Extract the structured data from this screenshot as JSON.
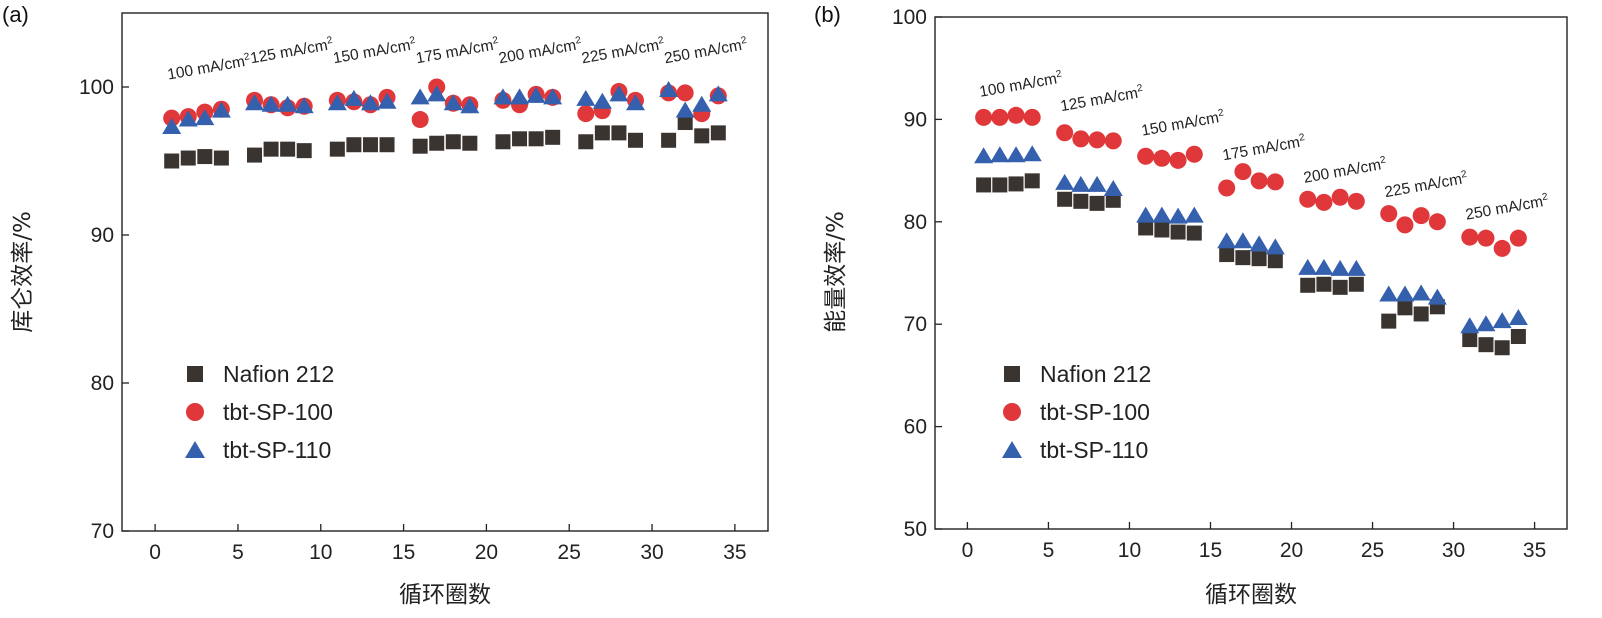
{
  "colors": {
    "nafion": "#3a3431",
    "sp100": "#e0373a",
    "sp110": "#3560ad"
  },
  "chart_data": [
    {
      "type": "scatter",
      "panel_label": "(a)",
      "ylabel": "库仑效率/%",
      "xlabel": "循环圈数",
      "xlim": [
        -2,
        37
      ],
      "ylim": [
        70,
        105
      ],
      "xticks": [
        0,
        5,
        10,
        15,
        20,
        25,
        30,
        35
      ],
      "yticks": [
        70,
        80,
        90,
        100
      ],
      "legend_position": "bottom-left",
      "annotations": [
        {
          "text": "100 mA/cm",
          "sup": "2",
          "x": 0.8,
          "y": 100.5
        },
        {
          "text": "125 mA/cm",
          "sup": "2",
          "x": 5.8,
          "y": 101.6
        },
        {
          "text": "150 mA/cm",
          "sup": "2",
          "x": 10.8,
          "y": 101.6
        },
        {
          "text": "175 mA/cm",
          "sup": "2",
          "x": 15.8,
          "y": 101.6
        },
        {
          "text": "200 mA/cm",
          "sup": "2",
          "x": 20.8,
          "y": 101.6
        },
        {
          "text": "225 mA/cm",
          "sup": "2",
          "x": 25.8,
          "y": 101.6
        },
        {
          "text": "250 mA/cm",
          "sup": "2",
          "x": 30.8,
          "y": 101.6
        }
      ],
      "series": [
        {
          "name": "Nafion 212",
          "marker": "square",
          "x": [
            1,
            2,
            3,
            4,
            6,
            7,
            8,
            9,
            11,
            12,
            13,
            14,
            16,
            17,
            18,
            19,
            21,
            22,
            23,
            24,
            26,
            27,
            28,
            29,
            31,
            32,
            33,
            34
          ],
          "y": [
            95.0,
            95.2,
            95.3,
            95.2,
            95.4,
            95.8,
            95.8,
            95.7,
            95.8,
            96.1,
            96.1,
            96.1,
            96.0,
            96.2,
            96.3,
            96.2,
            96.3,
            96.5,
            96.5,
            96.6,
            96.3,
            96.9,
            96.9,
            96.4,
            96.4,
            97.6,
            96.7,
            96.9
          ]
        },
        {
          "name": "tbt-SP-100",
          "marker": "circle",
          "x": [
            1,
            2,
            3,
            4,
            6,
            7,
            8,
            9,
            11,
            12,
            13,
            14,
            16,
            17,
            18,
            19,
            21,
            22,
            23,
            24,
            26,
            27,
            28,
            29,
            31,
            32,
            33,
            34
          ],
          "y": [
            97.9,
            98.0,
            98.3,
            98.5,
            99.1,
            98.8,
            98.6,
            98.7,
            99.1,
            99.0,
            98.8,
            99.3,
            97.8,
            100.0,
            98.9,
            98.8,
            99.1,
            98.8,
            99.5,
            99.3,
            98.2,
            98.4,
            99.7,
            99.1,
            99.6,
            99.6,
            98.2,
            99.4
          ]
        },
        {
          "name": "tbt-SP-110",
          "marker": "triangle",
          "x": [
            1,
            2,
            3,
            4,
            6,
            7,
            8,
            9,
            11,
            12,
            13,
            14,
            16,
            17,
            18,
            19,
            21,
            22,
            23,
            24,
            26,
            27,
            28,
            29,
            31,
            32,
            33,
            34
          ],
          "y": [
            97.3,
            97.8,
            97.9,
            98.4,
            98.9,
            98.8,
            98.8,
            98.7,
            98.9,
            99.2,
            98.9,
            99.0,
            99.3,
            99.5,
            98.9,
            98.7,
            99.3,
            99.3,
            99.4,
            99.3,
            99.2,
            99.0,
            99.5,
            98.9,
            99.8,
            98.4,
            98.8,
            99.5
          ]
        }
      ]
    },
    {
      "type": "scatter",
      "panel_label": "(b)",
      "ylabel": "能量效率/%",
      "xlabel": "循环圈数",
      "xlim": [
        -2,
        37
      ],
      "ylim": [
        50,
        100
      ],
      "xticks": [
        0,
        5,
        10,
        15,
        20,
        25,
        30,
        35
      ],
      "yticks": [
        50,
        60,
        70,
        80,
        90,
        100
      ],
      "legend_position": "bottom-left",
      "annotations": [
        {
          "text": "100 mA/cm",
          "sup": "2",
          "x": 0.8,
          "y": 92.2
        },
        {
          "text": "125 mA/cm",
          "sup": "2",
          "x": 5.8,
          "y": 90.8
        },
        {
          "text": "150 mA/cm",
          "sup": "2",
          "x": 10.8,
          "y": 88.4
        },
        {
          "text": "175 mA/cm",
          "sup": "2",
          "x": 15.8,
          "y": 86.0
        },
        {
          "text": "200 mA/cm",
          "sup": "2",
          "x": 20.8,
          "y": 83.8
        },
        {
          "text": "225 mA/cm",
          "sup": "2",
          "x": 25.8,
          "y": 82.4
        },
        {
          "text": "250 mA/cm",
          "sup": "2",
          "x": 30.8,
          "y": 80.2
        }
      ],
      "series": [
        {
          "name": "Nafion 212",
          "marker": "square",
          "x": [
            1,
            2,
            3,
            4,
            6,
            7,
            8,
            9,
            11,
            12,
            13,
            14,
            16,
            17,
            18,
            19,
            21,
            22,
            23,
            24,
            26,
            27,
            28,
            29,
            31,
            32,
            33,
            34
          ],
          "y": [
            83.6,
            83.6,
            83.7,
            84.0,
            82.2,
            82.0,
            81.8,
            82.1,
            79.4,
            79.2,
            79.0,
            78.9,
            76.8,
            76.5,
            76.4,
            76.2,
            73.8,
            73.9,
            73.6,
            73.9,
            70.3,
            71.6,
            71.0,
            71.7,
            68.5,
            68.0,
            67.7,
            68.8
          ]
        },
        {
          "name": "tbt-SP-100",
          "marker": "circle",
          "x": [
            1,
            2,
            3,
            4,
            6,
            7,
            8,
            9,
            11,
            12,
            13,
            14,
            16,
            17,
            18,
            19,
            21,
            22,
            23,
            24,
            26,
            27,
            28,
            29,
            31,
            32,
            33,
            34
          ],
          "y": [
            90.2,
            90.2,
            90.4,
            90.2,
            88.7,
            88.1,
            88.0,
            87.9,
            86.4,
            86.2,
            86.0,
            86.6,
            83.3,
            84.9,
            84.0,
            83.9,
            82.2,
            81.9,
            82.4,
            82.0,
            80.8,
            79.7,
            80.6,
            80.0,
            78.5,
            78.4,
            77.4,
            78.4
          ]
        },
        {
          "name": "tbt-SP-110",
          "marker": "triangle",
          "x": [
            1,
            2,
            3,
            4,
            6,
            7,
            8,
            9,
            11,
            12,
            13,
            14,
            16,
            17,
            18,
            19,
            21,
            22,
            23,
            24,
            26,
            27,
            28,
            29,
            31,
            32,
            33,
            34
          ],
          "y": [
            86.4,
            86.5,
            86.5,
            86.6,
            83.8,
            83.6,
            83.6,
            83.2,
            80.6,
            80.6,
            80.5,
            80.6,
            78.1,
            78.1,
            77.8,
            77.5,
            75.5,
            75.5,
            75.4,
            75.4,
            72.9,
            72.9,
            73.0,
            72.6,
            69.8,
            70.0,
            70.3,
            70.6
          ]
        }
      ]
    }
  ]
}
